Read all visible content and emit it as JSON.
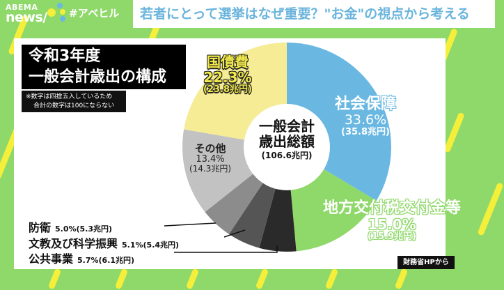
{
  "header": {
    "logo_line1": "ABEMA",
    "logo_line2": "news/",
    "hashtag": "#アベヒル",
    "headline": "若者にとって選挙はなぜ重要？\"お金\"の視点から考える"
  },
  "colors": {
    "background_green": "#8fd86a",
    "stripe_yellow": "#f4ef3a",
    "headline_blue": "#6ab4dc",
    "social_security": "#6ab8e2",
    "local_allocation": "#8fd86a",
    "public_works": "#2a2a2a",
    "education_science": "#555555",
    "defense": "#8c8c8c",
    "other": "#c2c2c2",
    "national_debt": "#f5ec95"
  },
  "card": {
    "title_line1": "令和3年度",
    "title_line2": "一般会計歳出の構成",
    "note_line1": "※数字は四捨五入しているため",
    "note_line2": "合計の数字は100にならない",
    "source": "財務省HPから"
  },
  "chart_data": {
    "type": "pie",
    "title": "令和3年度 一般会計歳出の構成",
    "center_label": {
      "line1": "一般会計",
      "line2": "歳出総額",
      "total": "(106.6兆円)"
    },
    "total_trillion_yen": 106.6,
    "start_angle": "12 o'clock",
    "direction": "clockwise",
    "donut": true,
    "slices": [
      {
        "name": "社会保障",
        "percent": 33.6,
        "amount_label": "(35.8兆円)",
        "amount": 35.8,
        "color": "#6ab8e2"
      },
      {
        "name": "地方交付税交付金等",
        "percent": 15.0,
        "amount_label": "(15.9兆円)",
        "amount": 15.9,
        "color": "#8fd86a"
      },
      {
        "name": "公共事業",
        "percent": 5.7,
        "amount_label": "(6.1兆円)",
        "amount": 6.1,
        "color": "#2a2a2a"
      },
      {
        "name": "文教及び科学振興",
        "percent": 5.1,
        "amount_label": "(5.4兆円)",
        "amount": 5.4,
        "color": "#555555"
      },
      {
        "name": "防衛",
        "percent": 5.0,
        "amount_label": "(5.3兆円)",
        "amount": 5.3,
        "color": "#8c8c8c"
      },
      {
        "name": "その他",
        "percent": 13.4,
        "amount_label": "(14.3兆円)",
        "amount": 14.3,
        "color": "#c2c2c2"
      },
      {
        "name": "国債費",
        "percent": 22.3,
        "amount_label": "(23.8兆円)",
        "amount": 23.8,
        "color": "#f5ec95"
      }
    ],
    "note": "※数字は四捨五入しているため合計の数字は100にならない",
    "source": "財務省HPから"
  },
  "labels": {
    "kokusai": {
      "name": "国債費",
      "pct": "22.3%",
      "amt": "(23.8兆円)"
    },
    "shakai": {
      "name": "社会保障",
      "pct": "33.6%",
      "amt": "(35.8兆円)"
    },
    "chiho": {
      "name": "地方交付税交付金等",
      "pct": "15.0%",
      "amt": "(15.9兆円)"
    },
    "sonota": {
      "name": "その他",
      "pct": "13.4%",
      "amt": "(14.3兆円)"
    },
    "bouei": {
      "name": "防衛",
      "val": "5.0%(5.3兆円)"
    },
    "bunkyo": {
      "name": "文教及び科学振興",
      "val": "5.1%(5.4兆円)"
    },
    "koukyo": {
      "name": "公共事業",
      "val": "5.7%(6.1兆円)"
    },
    "center": {
      "line1": "一般会計",
      "line2": "歳出総額",
      "total": "(106.6兆円)"
    }
  }
}
